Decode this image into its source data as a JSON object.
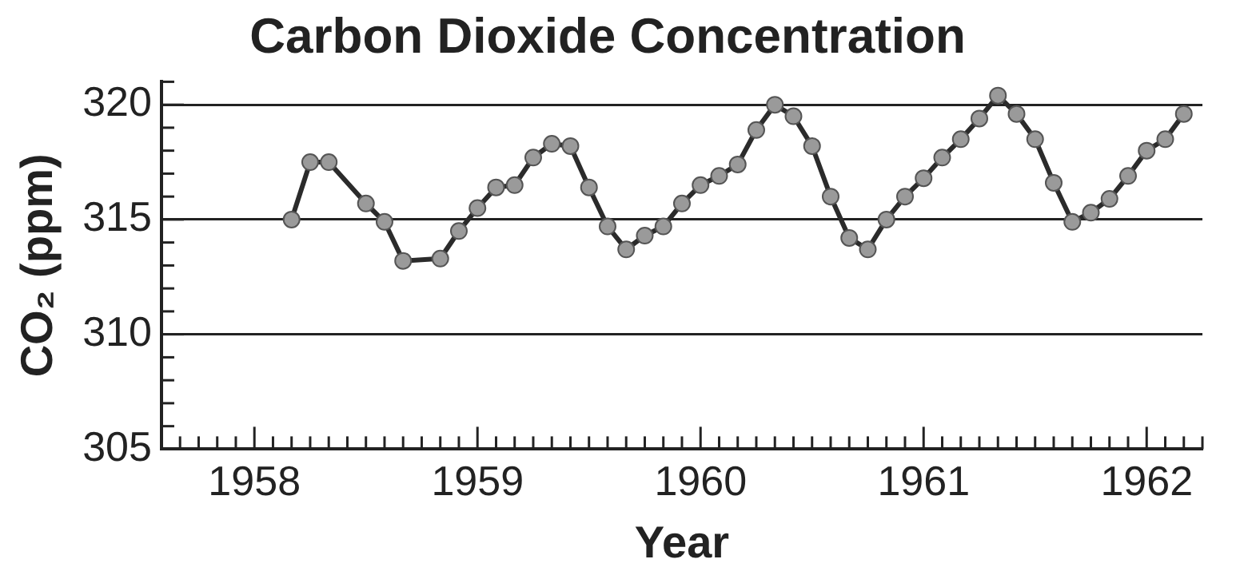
{
  "chart_data": {
    "type": "line",
    "title": "Carbon Dioxide Concentration",
    "xlabel": "Year",
    "ylabel": "CO₂ (ppm)",
    "x": [
      "1958-03",
      "1958-04",
      "1958-05",
      "1958-07",
      "1958-08",
      "1958-09",
      "1958-11",
      "1958-12",
      "1959-01",
      "1959-02",
      "1959-03",
      "1959-04",
      "1959-05",
      "1959-06",
      "1959-07",
      "1959-08",
      "1959-09",
      "1959-10",
      "1959-11",
      "1959-12",
      "1960-01",
      "1960-02",
      "1960-03",
      "1960-04",
      "1960-05",
      "1960-06",
      "1960-07",
      "1960-08",
      "1960-09",
      "1960-10",
      "1960-11",
      "1960-12",
      "1961-01",
      "1961-02",
      "1961-03",
      "1961-04",
      "1961-05",
      "1961-06",
      "1961-07",
      "1961-08",
      "1961-09",
      "1961-10",
      "1961-11",
      "1961-12",
      "1962-01",
      "1962-02",
      "1962-03"
    ],
    "series": [
      {
        "color": "#2b2b2b",
        "values": [
          315.0,
          317.5,
          317.5,
          315.7,
          314.9,
          313.2,
          313.3,
          314.5,
          315.5,
          316.4,
          316.5,
          317.7,
          318.3,
          318.2,
          316.4,
          314.7,
          313.7,
          314.3,
          314.7,
          315.7,
          316.5,
          316.9,
          317.4,
          318.9,
          320.0,
          319.5,
          318.2,
          316.0,
          314.2,
          313.7,
          315.0,
          316.0,
          316.8,
          317.7,
          318.5,
          319.4,
          320.4,
          319.6,
          318.5,
          316.6,
          314.9,
          315.3,
          315.9,
          316.9,
          318.0,
          318.5,
          319.6
        ]
      }
    ],
    "xlim": [
      "1957-08",
      "1962-04"
    ],
    "xticks": [
      {
        "value": "1957-09",
        "label": null
      },
      {
        "value": "1957-10",
        "label": null
      },
      {
        "value": "1957-11",
        "label": null
      },
      {
        "value": "1957-12",
        "label": null
      },
      {
        "value": "1958",
        "label": "1958"
      },
      {
        "value": "1958-02",
        "label": null
      },
      {
        "value": "1958-03",
        "label": null
      },
      {
        "value": "1958-04",
        "label": null
      },
      {
        "value": "1958-05",
        "label": null
      },
      {
        "value": "1958-06",
        "label": null
      },
      {
        "value": "1958-07",
        "label": null
      },
      {
        "value": "1958-08",
        "label": null
      },
      {
        "value": "1958-09",
        "label": null
      },
      {
        "value": "1958-10",
        "label": null
      },
      {
        "value": "1958-11",
        "label": null
      },
      {
        "value": "1958-12",
        "label": null
      },
      {
        "value": "1959",
        "label": "1959"
      },
      {
        "value": "1959-02",
        "label": null
      },
      {
        "value": "1959-03",
        "label": null
      },
      {
        "value": "1959-04",
        "label": null
      },
      {
        "value": "1959-05",
        "label": null
      },
      {
        "value": "1959-06",
        "label": null
      },
      {
        "value": "1959-07",
        "label": null
      },
      {
        "value": "1959-08",
        "label": null
      },
      {
        "value": "1959-09",
        "label": null
      },
      {
        "value": "1959-10",
        "label": null
      },
      {
        "value": "1959-11",
        "label": null
      },
      {
        "value": "1959-12",
        "label": null
      },
      {
        "value": "1960",
        "label": "1960"
      },
      {
        "value": "1960-02",
        "label": null
      },
      {
        "value": "1960-03",
        "label": null
      },
      {
        "value": "1960-04",
        "label": null
      },
      {
        "value": "1960-05",
        "label": null
      },
      {
        "value": "1960-06",
        "label": null
      },
      {
        "value": "1960-07",
        "label": null
      },
      {
        "value": "1960-08",
        "label": null
      },
      {
        "value": "1960-09",
        "label": null
      },
      {
        "value": "1960-10",
        "label": null
      },
      {
        "value": "1960-11",
        "label": null
      },
      {
        "value": "1960-12",
        "label": null
      },
      {
        "value": "1961",
        "label": "1961"
      },
      {
        "value": "1961-02",
        "label": null
      },
      {
        "value": "1961-03",
        "label": null
      },
      {
        "value": "1961-04",
        "label": null
      },
      {
        "value": "1961-05",
        "label": null
      },
      {
        "value": "1961-06",
        "label": null
      },
      {
        "value": "1961-07",
        "label": null
      },
      {
        "value": "1961-08",
        "label": null
      },
      {
        "value": "1961-09",
        "label": null
      },
      {
        "value": "1961-10",
        "label": null
      },
      {
        "value": "1961-11",
        "label": null
      },
      {
        "value": "1961-12",
        "label": null
      },
      {
        "value": "1962",
        "label": "1962"
      },
      {
        "value": "1962-02",
        "label": null
      },
      {
        "value": "1962-03",
        "label": null
      },
      {
        "value": "1962-04",
        "label": null
      }
    ],
    "ylim": [
      305,
      321
    ],
    "yticks": [
      305,
      {
        "value": 306,
        "label": null
      },
      {
        "value": 307,
        "label": null
      },
      {
        "value": 308,
        "label": null
      },
      {
        "value": 309,
        "label": null
      },
      310,
      {
        "value": 311,
        "label": null
      },
      {
        "value": 312,
        "label": null
      },
      {
        "value": 313,
        "label": null
      },
      {
        "value": 314,
        "label": null
      },
      315,
      {
        "value": 316,
        "label": null
      },
      {
        "value": 317,
        "label": null
      },
      {
        "value": 318,
        "label": null
      },
      {
        "value": 319,
        "label": null
      },
      320,
      {
        "value": 321,
        "label": null
      }
    ],
    "grid": "y",
    "legend": false,
    "marker": "circle",
    "line_style": "solid"
  }
}
